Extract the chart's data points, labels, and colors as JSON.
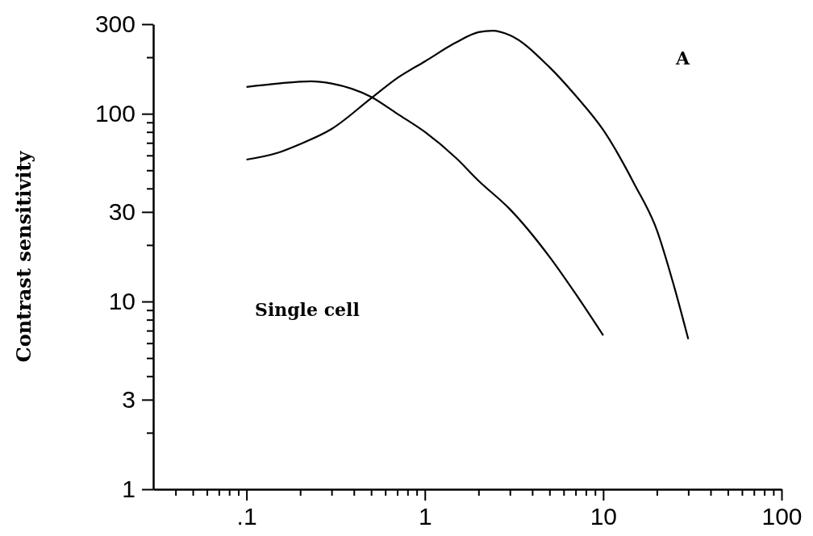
{
  "chart_data": {
    "type": "line",
    "ylabel": "Contrast sensitivity",
    "log": "xy",
    "grid": false,
    "legend": false,
    "marker": "none",
    "line_style": "solid",
    "xlim": [
      0.03,
      100
    ],
    "ylim": [
      1,
      300
    ],
    "xticks": [
      {
        "value": 0.04,
        "label": null
      },
      {
        "value": 0.05,
        "label": null
      },
      {
        "value": 0.06,
        "label": null
      },
      {
        "value": 0.07,
        "label": null
      },
      {
        "value": 0.08,
        "label": null
      },
      {
        "value": 0.09,
        "label": null
      },
      {
        "value": 0.1,
        "label": ".1"
      },
      {
        "value": 0.2,
        "label": null
      },
      {
        "value": 0.3,
        "label": null
      },
      {
        "value": 0.4,
        "label": null
      },
      {
        "value": 0.5,
        "label": null
      },
      {
        "value": 0.6,
        "label": null
      },
      {
        "value": 0.7,
        "label": null
      },
      {
        "value": 0.8,
        "label": null
      },
      {
        "value": 0.9,
        "label": null
      },
      1,
      {
        "value": 2,
        "label": null
      },
      {
        "value": 3,
        "label": null
      },
      {
        "value": 4,
        "label": null
      },
      {
        "value": 5,
        "label": null
      },
      {
        "value": 6,
        "label": null
      },
      {
        "value": 7,
        "label": null
      },
      {
        "value": 8,
        "label": null
      },
      {
        "value": 9,
        "label": null
      },
      10,
      {
        "value": 20,
        "label": null
      },
      {
        "value": 30,
        "label": null
      },
      {
        "value": 40,
        "label": null
      },
      {
        "value": 50,
        "label": null
      },
      {
        "value": 60,
        "label": null
      },
      {
        "value": 70,
        "label": null
      },
      {
        "value": 80,
        "label": null
      },
      {
        "value": 90,
        "label": null
      },
      100
    ],
    "yticks": [
      1,
      {
        "value": 2,
        "label": null
      },
      3,
      {
        "value": 4,
        "label": null
      },
      {
        "value": 5,
        "label": null
      },
      {
        "value": 6,
        "label": null
      },
      {
        "value": 7,
        "label": null
      },
      {
        "value": 8,
        "label": null
      },
      {
        "value": 9,
        "label": null
      },
      10,
      {
        "value": 20,
        "label": null
      },
      30,
      {
        "value": 40,
        "label": null
      },
      {
        "value": 50,
        "label": null
      },
      {
        "value": 60,
        "label": null
      },
      {
        "value": 70,
        "label": null
      },
      {
        "value": 80,
        "label": null
      },
      {
        "value": 90,
        "label": null
      },
      100,
      {
        "value": 200,
        "label": null
      },
      300
    ],
    "series": [
      {
        "color": "#000000",
        "x": [
          0.1,
          0.15,
          0.23,
          0.3,
          0.5,
          0.7,
          1,
          1.5,
          2,
          3,
          5,
          7,
          10
        ],
        "values": [
          139,
          145,
          149,
          145,
          123,
          100,
          80,
          58,
          44,
          31,
          17.3,
          11,
          6.6
        ]
      },
      {
        "color": "#000000",
        "x": [
          0.1,
          0.15,
          0.2,
          0.3,
          0.5,
          0.7,
          1,
          1.5,
          2,
          2.4,
          3,
          5,
          7,
          10,
          15,
          20,
          25,
          30
        ],
        "values": [
          57,
          62,
          69,
          83,
          121,
          155,
          190,
          240,
          272,
          277,
          262,
          177,
          125,
          82,
          42,
          24,
          12,
          6.3
        ]
      }
    ],
    "annotations": [
      "A",
      "Single cell"
    ]
  }
}
